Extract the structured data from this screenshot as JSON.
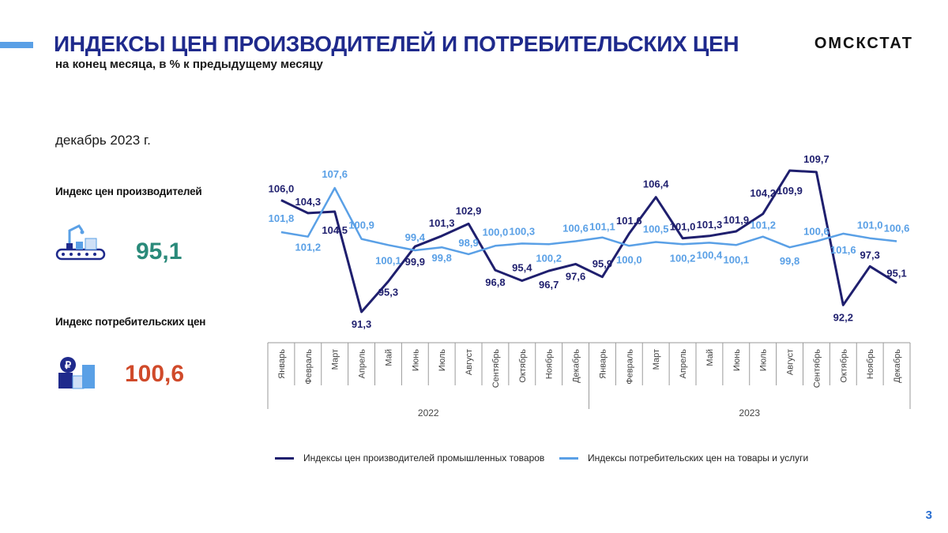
{
  "header": {
    "title": "ИНДЕКСЫ ЦЕН ПРОИЗВОДИТЕЛЕЙ И ПОТРЕБИТЕЛЬСКИХ ЦЕН",
    "subtitle": "на конец месяца, в % к предыдущему месяцу",
    "brand": "ОМСКСТАТ"
  },
  "summary": {
    "period": "декабрь 2023 г.",
    "producer_label": "Индекс цен производителей",
    "producer_value": "95,1",
    "producer_icon": "conveyor-icon",
    "consumer_label": "Индекс потребительских цен",
    "consumer_value": "100,6",
    "consumer_icon": "shopping-boxes-icon"
  },
  "colors": {
    "title": "#1f2a8c",
    "producer_series": "#1f1f6e",
    "consumer_series": "#5aa0e6",
    "producer_value": "#2a8a7a",
    "consumer_value": "#d04a2a"
  },
  "chart_data": {
    "type": "line",
    "categories": [
      "Январь",
      "Февраль",
      "Март",
      "Апрель",
      "Май",
      "Июнь",
      "Июль",
      "Август",
      "Сентябрь",
      "Октябрь",
      "Ноябрь",
      "Декабрь",
      "Январь",
      "Февраль",
      "Март",
      "Апрель",
      "Май",
      "Июнь",
      "Июль",
      "Август",
      "Сентябрь",
      "Октябрь",
      "Ноябрь",
      "Декабрь"
    ],
    "years": [
      {
        "label": "2022",
        "from": 0,
        "to": 11
      },
      {
        "label": "2023",
        "from": 12,
        "to": 23
      }
    ],
    "series": [
      {
        "name": "Индексы цен производителей промышленных товаров",
        "values": [
          106.0,
          104.3,
          104.5,
          91.3,
          95.3,
          99.9,
          101.3,
          102.9,
          96.8,
          95.4,
          96.7,
          97.6,
          95.9,
          101.6,
          106.4,
          101.0,
          101.3,
          101.9,
          104.2,
          109.9,
          109.7,
          92.2,
          97.3,
          95.1
        ],
        "labels": [
          "106,0",
          "104,3",
          "104,5",
          "91,3",
          "95,3",
          "99,9",
          "101,3",
          "102,9",
          "96,8",
          "95,4",
          "96,7",
          "97,6",
          "95,9",
          "101,6",
          "106,4",
          "101,0",
          "101,3",
          "101,9",
          "104,2",
          "109,9",
          "109,7",
          "92,2",
          "97,3",
          "95,1"
        ]
      },
      {
        "name": "Индексы потребительских цен на товары и услуги",
        "values": [
          101.8,
          101.2,
          107.6,
          100.9,
          100.1,
          99.4,
          99.8,
          98.9,
          100.0,
          100.3,
          100.2,
          100.6,
          101.1,
          100.0,
          100.5,
          100.2,
          100.4,
          100.1,
          101.2,
          99.8,
          100.6,
          101.6,
          101.0,
          100.6
        ],
        "labels": [
          "101,8",
          "101,2",
          "107,6",
          "100,9",
          "100,1",
          "99,4",
          "99,8",
          "98,9",
          "100,0",
          "100,3",
          "100,2",
          "100,6",
          "101,1",
          "100,0",
          "100,5",
          "100,2",
          "100,4",
          "100,1",
          "101,2",
          "99,8",
          "100,6",
          "101,6",
          "101,0",
          "100,6"
        ]
      }
    ],
    "legend_position": "bottom"
  },
  "page": {
    "number": "3"
  }
}
